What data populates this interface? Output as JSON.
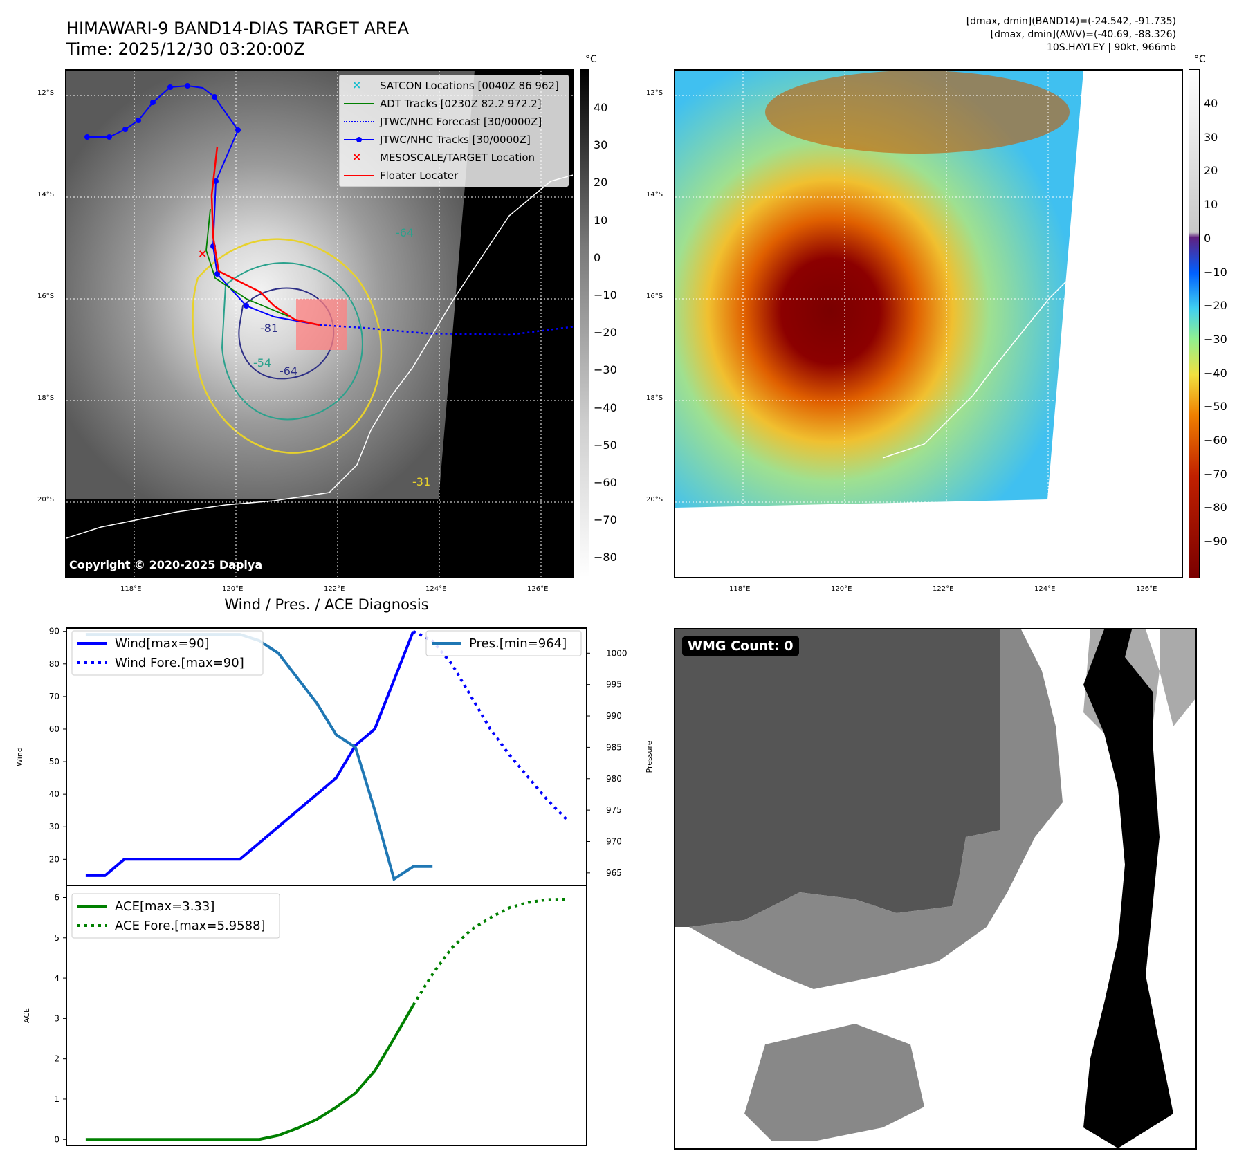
{
  "header": {
    "title_line1": "HIMAWARI-9 BAND14-DIAS TARGET AREA",
    "title_line2": "Time: 2025/12/30 03:20:00Z",
    "right_line1": "[dmax, dmin](BAND14)=(-24.542, -91.735)",
    "right_line2": "[dmax, dmin](AWV)=(-40.69, -88.326)",
    "right_line3": "10S.HAYLEY | 90kt, 966mb"
  },
  "map_axes": {
    "lat_labels": [
      "12°S",
      "14°S",
      "16°S",
      "18°S",
      "20°S"
    ],
    "lon_labels": [
      "118°E",
      "120°E",
      "122°E",
      "124°E",
      "126°E"
    ]
  },
  "colorbar_left": {
    "unit": "°C",
    "ticks": [
      "40",
      "30",
      "20",
      "10",
      "0",
      "−10",
      "−20",
      "−30",
      "−40",
      "−50",
      "−60",
      "−70",
      "−80"
    ]
  },
  "colorbar_right": {
    "unit": "°C",
    "ticks": [
      "40",
      "30",
      "20",
      "10",
      "0",
      "−10",
      "−20",
      "−30",
      "−40",
      "−50",
      "−60",
      "−70",
      "−80",
      "−90"
    ]
  },
  "ir_legend": [
    {
      "label": "SATCON Locations [0040Z 86 962]",
      "marker": "x",
      "color": "#17becf"
    },
    {
      "label": "ADT Tracks [0230Z 82.2 972.2]",
      "marker": "line",
      "color": "#008000"
    },
    {
      "label": "JTWC/NHC Forecast [30/0000Z]",
      "marker": "dotted",
      "color": "#0000ff"
    },
    {
      "label": "JTWC/NHC Tracks [30/0000Z]",
      "marker": "line-dot",
      "color": "#0000ff"
    },
    {
      "label": "MESOSCALE/TARGET Location",
      "marker": "x",
      "color": "#ff0000"
    },
    {
      "label": "Floater Locater",
      "marker": "line",
      "color": "#ff0000"
    }
  ],
  "contour_labels": [
    "-81",
    "-64",
    "-54",
    "-64",
    "-31"
  ],
  "copyright": "Copyright © 2020-2025 Dapiya",
  "wmg_label": "WMG Count: 0",
  "diag_title": "Wind / Pres. / ACE Diagnosis",
  "chart_data": [
    {
      "type": "line",
      "title": "Wind / Pres. / ACE Diagnosis",
      "ylabel": "Wind",
      "y2label": "Pressure",
      "ylim": [
        12,
        91
      ],
      "y2lim": [
        963,
        1004
      ],
      "xlim": [
        0,
        27
      ],
      "yticks": [
        "20",
        "30",
        "40",
        "50",
        "60",
        "70",
        "80",
        "90"
      ],
      "y2ticks": [
        "965",
        "970",
        "975",
        "980",
        "985",
        "990",
        "995",
        "1000"
      ],
      "series": [
        {
          "name": "Wind[max=90]",
          "axis": "left",
          "style": "solid",
          "color": "#0000ff",
          "x": [
            1,
            2,
            3,
            4,
            5,
            6,
            7,
            8,
            9,
            10,
            11,
            12,
            13,
            14,
            15,
            16,
            17,
            18
          ],
          "values": [
            15,
            15,
            20,
            20,
            20,
            20,
            20,
            20,
            20,
            25,
            30,
            35,
            40,
            45,
            55,
            60,
            75,
            90
          ]
        },
        {
          "name": "Wind Fore.[max=90]",
          "axis": "left",
          "style": "dotted",
          "color": "#0000ff",
          "x": [
            18,
            19,
            20,
            21,
            22,
            23,
            24,
            25,
            26
          ],
          "values": [
            90,
            87,
            80,
            70,
            60,
            52,
            45,
            38,
            32
          ]
        },
        {
          "name": "Pres.[min=964]",
          "axis": "right",
          "style": "solid",
          "color": "#1f77b4",
          "x": [
            1,
            2,
            3,
            4,
            5,
            6,
            7,
            8,
            9,
            10,
            11,
            12,
            13,
            14,
            15,
            16,
            17,
            18,
            19
          ],
          "values": [
            1003,
            1003,
            1003,
            1003,
            1003,
            1003,
            1003,
            1003,
            1003,
            1002,
            1000,
            996,
            992,
            987,
            985,
            975,
            964,
            966,
            966
          ]
        }
      ]
    },
    {
      "type": "line",
      "ylabel": "ACE",
      "ylim": [
        -0.15,
        6.3
      ],
      "xlim": [
        0,
        27
      ],
      "yticks": [
        "0",
        "1",
        "2",
        "3",
        "4",
        "5",
        "6"
      ],
      "series": [
        {
          "name": "ACE[max=3.33]",
          "style": "solid",
          "color": "#008000",
          "x": [
            1,
            2,
            3,
            4,
            5,
            6,
            7,
            8,
            9,
            10,
            11,
            12,
            13,
            14,
            15,
            16,
            17,
            18
          ],
          "values": [
            0,
            0,
            0,
            0,
            0,
            0,
            0,
            0,
            0,
            0,
            0.1,
            0.28,
            0.5,
            0.8,
            1.15,
            1.7,
            2.5,
            3.33
          ]
        },
        {
          "name": "ACE Fore.[max=5.9588]",
          "style": "dotted",
          "color": "#008000",
          "x": [
            18,
            19,
            20,
            21,
            22,
            23,
            24,
            25,
            26
          ],
          "values": [
            3.33,
            4.1,
            4.75,
            5.2,
            5.5,
            5.75,
            5.88,
            5.95,
            5.9588
          ]
        }
      ]
    }
  ]
}
